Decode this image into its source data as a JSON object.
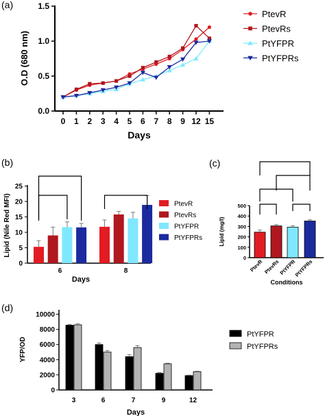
{
  "colors": {
    "PtevR": "#e31b23",
    "PtevRs": "#b0171f",
    "PtYFPR": "#7fe8ff",
    "PtYFPRs": "#1b2a9e",
    "black": "#000000",
    "gray": "#b3b3b3"
  },
  "chart_data": [
    {
      "panel": "(a)",
      "type": "line",
      "xlabel": "Days",
      "ylabel": "O.D (680 nm)",
      "ylim": [
        0,
        1.5
      ],
      "yticks": [
        "0.0",
        "0.5",
        "1.0",
        "1.5"
      ],
      "categories": [
        "0",
        "1",
        "2",
        "3",
        "4",
        "5",
        "6",
        "7",
        "8",
        "9",
        "12",
        "15"
      ],
      "legend_position": "top-right",
      "series": [
        {
          "name": "PtevR",
          "marker": "circle",
          "values": [
            0.2,
            0.3,
            0.37,
            0.4,
            0.43,
            0.53,
            0.6,
            0.67,
            0.75,
            0.88,
            1.03,
            1.2
          ]
        },
        {
          "name": "PtevRs",
          "marker": "square",
          "values": [
            0.2,
            0.31,
            0.39,
            0.4,
            0.43,
            0.5,
            0.62,
            0.7,
            0.78,
            0.9,
            1.22,
            1.04
          ]
        },
        {
          "name": "PtYFPR",
          "marker": "triangle-up",
          "values": [
            0.2,
            0.22,
            0.25,
            0.28,
            0.31,
            0.39,
            0.45,
            0.5,
            0.58,
            0.66,
            0.75,
            1.0
          ]
        },
        {
          "name": "PtYFPRs",
          "marker": "triangle-down",
          "values": [
            0.2,
            0.22,
            0.26,
            0.3,
            0.34,
            0.4,
            0.55,
            0.48,
            0.63,
            0.74,
            0.98,
            1.0
          ]
        }
      ]
    },
    {
      "panel": "(b)",
      "type": "bar",
      "xlabel": "Days",
      "ylabel": "Lipid (Nile  Red MFI)",
      "ylim": [
        0,
        25
      ],
      "yticks": [
        "0",
        "5",
        "10",
        "15",
        "20",
        "25"
      ],
      "categories": [
        "6",
        "8"
      ],
      "legend_position": "right",
      "series": [
        {
          "name": "PtevR",
          "values": [
            5.3,
            11.8
          ],
          "errors": [
            2.0,
            2.2
          ]
        },
        {
          "name": "PtevRs",
          "values": [
            9.0,
            15.8
          ],
          "errors": [
            2.7,
            1.0
          ]
        },
        {
          "name": "PtYFPR",
          "values": [
            11.7,
            14.5
          ],
          "errors": [
            1.7,
            2.0
          ]
        },
        {
          "name": "PtYFPRs",
          "values": [
            11.6,
            18.9
          ],
          "errors": [
            1.3,
            3.0
          ]
        }
      ],
      "annotations": [
        "**",
        "**",
        "**"
      ]
    },
    {
      "panel": "(c)",
      "type": "bar",
      "xlabel": "Conditions",
      "ylabel": "Lipid (mg/l)",
      "ylim": [
        0,
        500
      ],
      "yticks": [
        "0",
        "100",
        "200",
        "300",
        "400",
        "500"
      ],
      "categories": [
        "PtevR",
        "PtevRs",
        "PtYFPR",
        "PtYFPRs"
      ],
      "values": [
        245,
        305,
        293,
        352
      ],
      "errors": [
        20,
        12,
        14,
        12
      ],
      "annotations": [
        "***",
        "*",
        "*",
        "**",
        "**"
      ]
    },
    {
      "panel": "(d)",
      "type": "bar",
      "xlabel": "Days",
      "ylabel": "YFP/OD",
      "ylim": [
        0,
        10000
      ],
      "yticks": [
        "0",
        "2000",
        "4000",
        "6000",
        "8000",
        "10000"
      ],
      "categories": [
        "3",
        "6",
        "7",
        "9",
        "12"
      ],
      "legend_position": "right",
      "series": [
        {
          "name": "PtYFPR",
          "values": [
            8550,
            6000,
            4400,
            2200,
            1900
          ],
          "errors": [
            100,
            200,
            250,
            100,
            60
          ]
        },
        {
          "name": "PtYFPRs",
          "values": [
            8600,
            5000,
            5600,
            3450,
            2420
          ],
          "errors": [
            150,
            200,
            250,
            80,
            60
          ]
        }
      ]
    }
  ]
}
